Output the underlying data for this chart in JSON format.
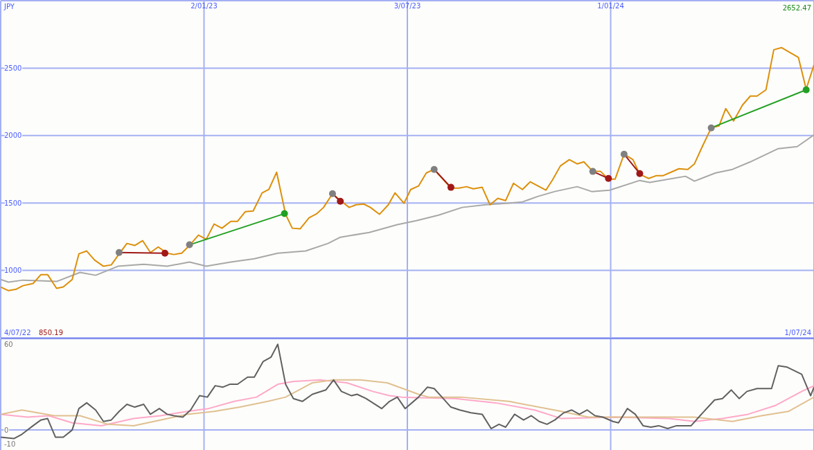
{
  "chart_data": [
    {
      "type": "line",
      "ylabel": "JPY",
      "xlim": [
        "2022-07-04",
        "2024-07-01"
      ],
      "ylim": [
        500,
        3000
      ],
      "yticks": [
        1000,
        1500,
        2000,
        2500
      ],
      "xticks": [
        {
          "value": "2023-01-02",
          "label": "2/01/23"
        },
        {
          "value": "2023-07-03",
          "label": "3/07/23"
        },
        {
          "value": "2024-01-01",
          "label": "1/01/24"
        }
      ],
      "grid": true,
      "marker": "none",
      "annotations": [
        "2652.47",
        "4/07/22",
        "850.19",
        "1/07/24"
      ],
      "series": [
        {
          "color": "#a8a8a8",
          "x": [
            "2022-07-04",
            "2022-07-11",
            "2022-07-24",
            "2022-08-08",
            "2022-08-23",
            "2022-09-13",
            "2022-09-27",
            "2022-10-17",
            "2022-11-09",
            "2022-11-30",
            "2022-12-20",
            "2023-01-04",
            "2023-01-26",
            "2023-02-16",
            "2023-03-09",
            "2023-04-03",
            "2023-04-23",
            "2023-05-04",
            "2023-05-30",
            "2023-06-24",
            "2023-07-11",
            "2023-07-31",
            "2023-08-21",
            "2023-09-11",
            "2023-10-01",
            "2023-10-14",
            "2023-10-28",
            "2023-11-12",
            "2023-12-02",
            "2023-12-15",
            "2023-12-31",
            "2024-01-27",
            "2024-02-05",
            "2024-03-08",
            "2024-03-16",
            "2024-04-04",
            "2024-04-19",
            "2024-05-05",
            "2024-05-30",
            "2024-06-16",
            "2024-07-01"
          ],
          "values": [
            933,
            913,
            928,
            923,
            918,
            985,
            964,
            1031,
            1046,
            1031,
            1062,
            1031,
            1062,
            1087,
            1128,
            1144,
            1200,
            1246,
            1282,
            1339,
            1369,
            1410,
            1467,
            1487,
            1498,
            1508,
            1549,
            1585,
            1621,
            1585,
            1595,
            1667,
            1652,
            1698,
            1662,
            1723,
            1749,
            1805,
            1903,
            1918,
            2005
          ]
        },
        {
          "color": "#dd8f0a",
          "x": [
            "2022-07-04",
            "2022-07-11",
            "2022-07-18",
            "2022-07-24",
            "2022-08-02",
            "2022-08-09",
            "2022-08-15",
            "2022-08-23",
            "2022-08-29",
            "2022-09-06",
            "2022-09-12",
            "2022-09-19",
            "2022-09-26",
            "2022-10-04",
            "2022-10-11",
            "2022-10-19",
            "2022-10-25",
            "2022-11-01",
            "2022-11-08",
            "2022-11-15",
            "2022-11-22",
            "2022-11-30",
            "2022-12-06",
            "2022-12-13",
            "2022-12-20",
            "2022-12-28",
            "2023-01-04",
            "2023-01-11",
            "2023-01-18",
            "2023-01-26",
            "2023-02-01",
            "2023-02-08",
            "2023-02-15",
            "2023-02-23",
            "2023-03-01",
            "2023-03-08",
            "2023-03-16",
            "2023-03-22",
            "2023-03-29",
            "2023-04-06",
            "2023-04-13",
            "2023-04-19",
            "2023-04-27",
            "2023-05-04",
            "2023-05-12",
            "2023-05-18",
            "2023-05-25",
            "2023-05-31",
            "2023-06-08",
            "2023-06-16",
            "2023-06-22",
            "2023-06-30",
            "2023-07-06",
            "2023-07-13",
            "2023-07-20",
            "2023-07-27",
            "2023-08-11",
            "2023-08-18",
            "2023-08-25",
            "2023-08-31",
            "2023-09-08",
            "2023-09-15",
            "2023-09-22",
            "2023-09-29",
            "2023-10-06",
            "2023-10-14",
            "2023-10-21",
            "2023-11-04",
            "2023-11-10",
            "2023-11-17",
            "2023-11-25",
            "2023-12-02",
            "2023-12-08",
            "2023-12-16",
            "2023-12-23",
            "2023-12-30",
            "2024-01-05",
            "2024-01-13",
            "2024-01-21",
            "2024-01-27",
            "2024-02-04",
            "2024-02-11",
            "2024-02-17",
            "2024-02-24",
            "2024-03-02",
            "2024-03-10",
            "2024-03-16",
            "2024-03-23",
            "2024-03-31",
            "2024-04-07",
            "2024-04-13",
            "2024-04-20",
            "2024-04-28",
            "2024-05-05",
            "2024-05-11",
            "2024-05-19",
            "2024-05-26",
            "2024-06-02",
            "2024-06-17",
            "2024-06-24",
            "2024-07-01"
          ],
          "values": [
            877,
            850,
            861,
            887,
            903,
            969,
            969,
            867,
            877,
            933,
            1123,
            1144,
            1077,
            1031,
            1041,
            1133,
            1200,
            1185,
            1221,
            1133,
            1174,
            1128,
            1118,
            1128,
            1185,
            1262,
            1231,
            1344,
            1313,
            1364,
            1364,
            1436,
            1441,
            1575,
            1600,
            1728,
            1416,
            1313,
            1308,
            1390,
            1421,
            1467,
            1569,
            1518,
            1467,
            1487,
            1492,
            1467,
            1416,
            1487,
            1575,
            1498,
            1600,
            1626,
            1723,
            1749,
            1610,
            1610,
            1621,
            1605,
            1616,
            1487,
            1534,
            1518,
            1646,
            1600,
            1657,
            1595,
            1672,
            1775,
            1821,
            1790,
            1805,
            1734,
            1734,
            1677,
            1677,
            1862,
            1821,
            1713,
            1682,
            1703,
            1703,
            1728,
            1754,
            1749,
            1790,
            1918,
            2057,
            2072,
            2200,
            2108,
            2226,
            2293,
            2293,
            2339,
            2636,
            2652,
            2580,
            2344,
            2524
          ]
        },
        {
          "color": "#a01818",
          "colors": [
            "#808080",
            "#a01818"
          ],
          "marker": "circle",
          "x": [
            "2022-10-18",
            "2022-11-28"
          ],
          "values": [
            1133,
            1128
          ]
        },
        {
          "color": "#22a022",
          "colors": [
            "#808080",
            "#22a022"
          ],
          "marker": "circle",
          "x": [
            "2022-12-20",
            "2023-03-15"
          ],
          "values": [
            1190,
            1421
          ]
        },
        {
          "color": "#a01818",
          "colors": [
            "#808080",
            "#a01818"
          ],
          "marker": "circle",
          "x": [
            "2023-04-27",
            "2023-05-04"
          ],
          "values": [
            1569,
            1513
          ]
        },
        {
          "color": "#a01818",
          "colors": [
            "#808080",
            "#a01818"
          ],
          "marker": "circle",
          "x": [
            "2023-07-27",
            "2023-08-11"
          ],
          "values": [
            1749,
            1616
          ]
        },
        {
          "color": "#a01818",
          "colors": [
            "#808080",
            "#a01818"
          ],
          "marker": "circle",
          "x": [
            "2023-12-16",
            "2023-12-30"
          ],
          "values": [
            1734,
            1682
          ]
        },
        {
          "color": "#a01818",
          "colors": [
            "#808080",
            "#a01818"
          ],
          "marker": "circle",
          "x": [
            "2024-01-13",
            "2024-01-27"
          ],
          "values": [
            1862,
            1718
          ]
        },
        {
          "color": "#22a022",
          "colors": [
            "#808080",
            "#22a022"
          ],
          "marker": "circle",
          "x": [
            "2024-03-31",
            "2024-06-24"
          ],
          "values": [
            2057,
            2339
          ]
        }
      ]
    },
    {
      "type": "line",
      "xlim": [
        "2022-07-04",
        "2024-07-01"
      ],
      "ylim": [
        -14,
        64
      ],
      "yticks": [
        60,
        0,
        -10
      ],
      "xticks": [
        {
          "value": "2023-01-02",
          "label": null
        },
        {
          "value": "2023-07-03",
          "label": null
        },
        {
          "value": "2024-01-01",
          "label": null
        }
      ],
      "tick_labels": "y",
      "grid": "x",
      "marker": "none",
      "ref_lines": [
        {
          "axis": "y",
          "value": 0
        }
      ],
      "series": [
        {
          "color": "#ffa8c8",
          "x": [
            "2022-07-04",
            "2022-07-28",
            "2022-08-16",
            "2022-09-06",
            "2022-10-02",
            "2022-10-31",
            "2022-11-24",
            "2022-12-18",
            "2023-01-06",
            "2023-01-29",
            "2023-02-18",
            "2023-03-09",
            "2023-03-23",
            "2023-04-16",
            "2023-05-10",
            "2023-06-02",
            "2023-06-17",
            "2023-06-28",
            "2023-08-15",
            "2023-09-20",
            "2023-10-25",
            "2023-11-18",
            "2024-01-05",
            "2024-02-22",
            "2024-03-16",
            "2024-04-10",
            "2024-05-03",
            "2024-05-27",
            "2024-06-20",
            "2024-07-01"
          ],
          "values": [
            11,
            9,
            10,
            5,
            3,
            8,
            10,
            13,
            15,
            20,
            23,
            32,
            34,
            35,
            33,
            27,
            24,
            23,
            22,
            19,
            14,
            8,
            9,
            8,
            6,
            8,
            11,
            17,
            27,
            31
          ]
        },
        {
          "color": "#e0c090",
          "x": [
            "2022-07-04",
            "2022-07-23",
            "2022-08-21",
            "2022-09-13",
            "2022-10-08",
            "2022-10-31",
            "2022-11-24",
            "2022-12-18",
            "2023-01-11",
            "2023-02-03",
            "2023-02-28",
            "2023-03-16",
            "2023-04-09",
            "2023-04-28",
            "2023-05-22",
            "2023-06-15",
            "2023-07-13",
            "2023-07-22",
            "2023-08-20",
            "2023-10-02",
            "2023-11-18",
            "2023-12-12",
            "2024-01-17",
            "2024-02-22",
            "2024-03-16",
            "2024-04-19",
            "2024-05-15",
            "2024-06-08",
            "2024-07-01"
          ],
          "values": [
            11,
            14,
            10,
            10,
            4,
            3,
            7,
            11,
            13,
            16,
            20,
            23,
            33,
            35,
            35,
            33,
            25,
            23,
            23,
            20,
            13,
            9,
            9,
            9,
            9,
            6,
            10,
            13,
            23
          ]
        },
        {
          "color": "#606060",
          "x": [
            "2022-07-04",
            "2022-07-16",
            "2022-07-23",
            "2022-08-02",
            "2022-08-09",
            "2022-08-15",
            "2022-08-22",
            "2022-08-29",
            "2022-09-06",
            "2022-09-12",
            "2022-09-19",
            "2022-09-27",
            "2022-10-04",
            "2022-10-11",
            "2022-10-18",
            "2022-10-25",
            "2022-11-01",
            "2022-11-09",
            "2022-11-15",
            "2022-11-23",
            "2022-11-30",
            "2022-12-06",
            "2022-12-14",
            "2022-12-21",
            "2022-12-29",
            "2023-01-05",
            "2023-01-12",
            "2023-01-19",
            "2023-01-25",
            "2023-02-01",
            "2023-02-10",
            "2023-02-16",
            "2023-02-24",
            "2023-03-03",
            "2023-03-09",
            "2023-03-16",
            "2023-03-23",
            "2023-03-31",
            "2023-04-09",
            "2023-04-21",
            "2023-04-28",
            "2023-05-05",
            "2023-05-14",
            "2023-05-19",
            "2023-05-27",
            "2023-06-10",
            "2023-06-17",
            "2023-06-24",
            "2023-07-01",
            "2023-07-13",
            "2023-07-21",
            "2023-07-27",
            "2023-08-03",
            "2023-08-11",
            "2023-08-19",
            "2023-08-29",
            "2023-09-08",
            "2023-09-16",
            "2023-09-23",
            "2023-09-29",
            "2023-10-07",
            "2023-10-15",
            "2023-10-22",
            "2023-10-29",
            "2023-11-05",
            "2023-11-12",
            "2023-11-20",
            "2023-11-27",
            "2023-12-04",
            "2023-12-11",
            "2023-12-18",
            "2023-12-25",
            "2024-01-03",
            "2024-01-08",
            "2024-01-16",
            "2024-01-23",
            "2024-01-30",
            "2024-02-06",
            "2024-02-13",
            "2024-02-21",
            "2024-02-29",
            "2024-03-13",
            "2024-03-21",
            "2024-04-03",
            "2024-04-10",
            "2024-04-18",
            "2024-04-25",
            "2024-05-02",
            "2024-05-11",
            "2024-05-24",
            "2024-05-30",
            "2024-06-07",
            "2024-06-20",
            "2024-06-28",
            "2024-07-01"
          ],
          "values": [
            -5,
            -6,
            -3,
            3,
            7,
            8,
            -5,
            -5,
            0,
            15,
            19,
            14,
            6,
            7,
            13,
            18,
            16,
            18,
            11,
            15,
            11,
            10,
            9,
            14,
            24,
            23,
            31,
            30,
            32,
            32,
            37,
            37,
            48,
            51,
            60,
            32,
            22,
            20,
            25,
            28,
            35,
            27,
            24,
            25,
            22,
            15,
            20,
            23,
            15,
            23,
            30,
            29,
            23,
            16,
            14,
            12,
            11,
            1,
            4,
            2,
            11,
            7,
            10,
            6,
            4,
            7,
            12,
            14,
            11,
            14,
            10,
            9,
            6,
            5,
            15,
            11,
            3,
            2,
            3,
            1,
            3,
            3,
            10,
            21,
            22,
            28,
            22,
            27,
            29,
            29,
            45,
            44,
            39,
            24,
            30
          ]
        }
      ]
    }
  ]
}
